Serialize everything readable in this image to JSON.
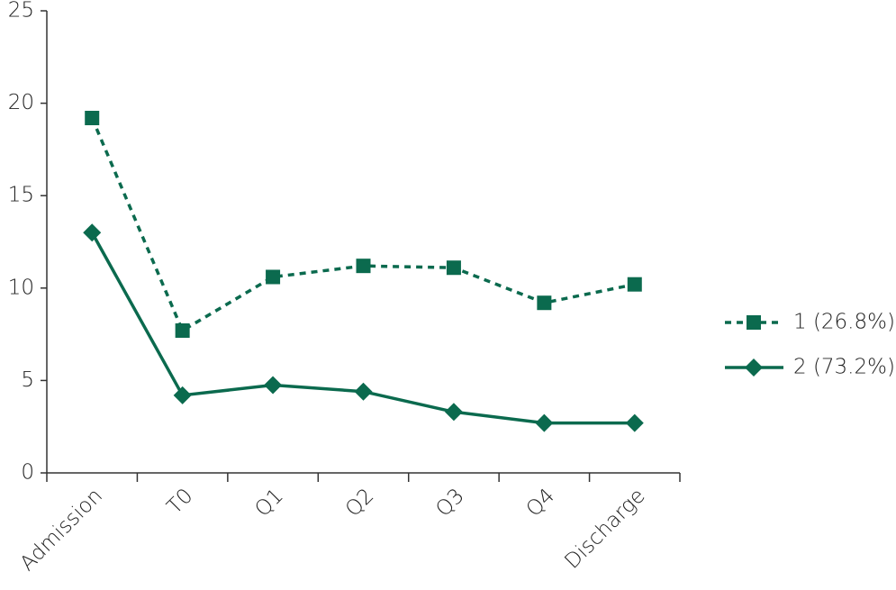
{
  "chart_data": {
    "type": "line",
    "categories": [
      "Admission",
      "T0",
      "Q1",
      "Q2",
      "Q3",
      "Q4",
      "Discharge"
    ],
    "series": [
      {
        "name": "1 (26.8%)",
        "color": "#0b6a4e",
        "line_style": "dashed",
        "marker": "square",
        "values": [
          19.2,
          7.7,
          10.6,
          11.2,
          11.1,
          9.2,
          10.2
        ]
      },
      {
        "name": "2 (73.2%)",
        "color": "#0b6a4e",
        "line_style": "solid",
        "marker": "diamond",
        "values": [
          13.0,
          4.2,
          4.75,
          4.4,
          3.3,
          2.7,
          2.7
        ]
      }
    ],
    "ylim": [
      0,
      25
    ],
    "yticks": [
      0,
      5,
      10,
      15,
      20,
      25
    ],
    "grid": false,
    "legend": "right"
  }
}
